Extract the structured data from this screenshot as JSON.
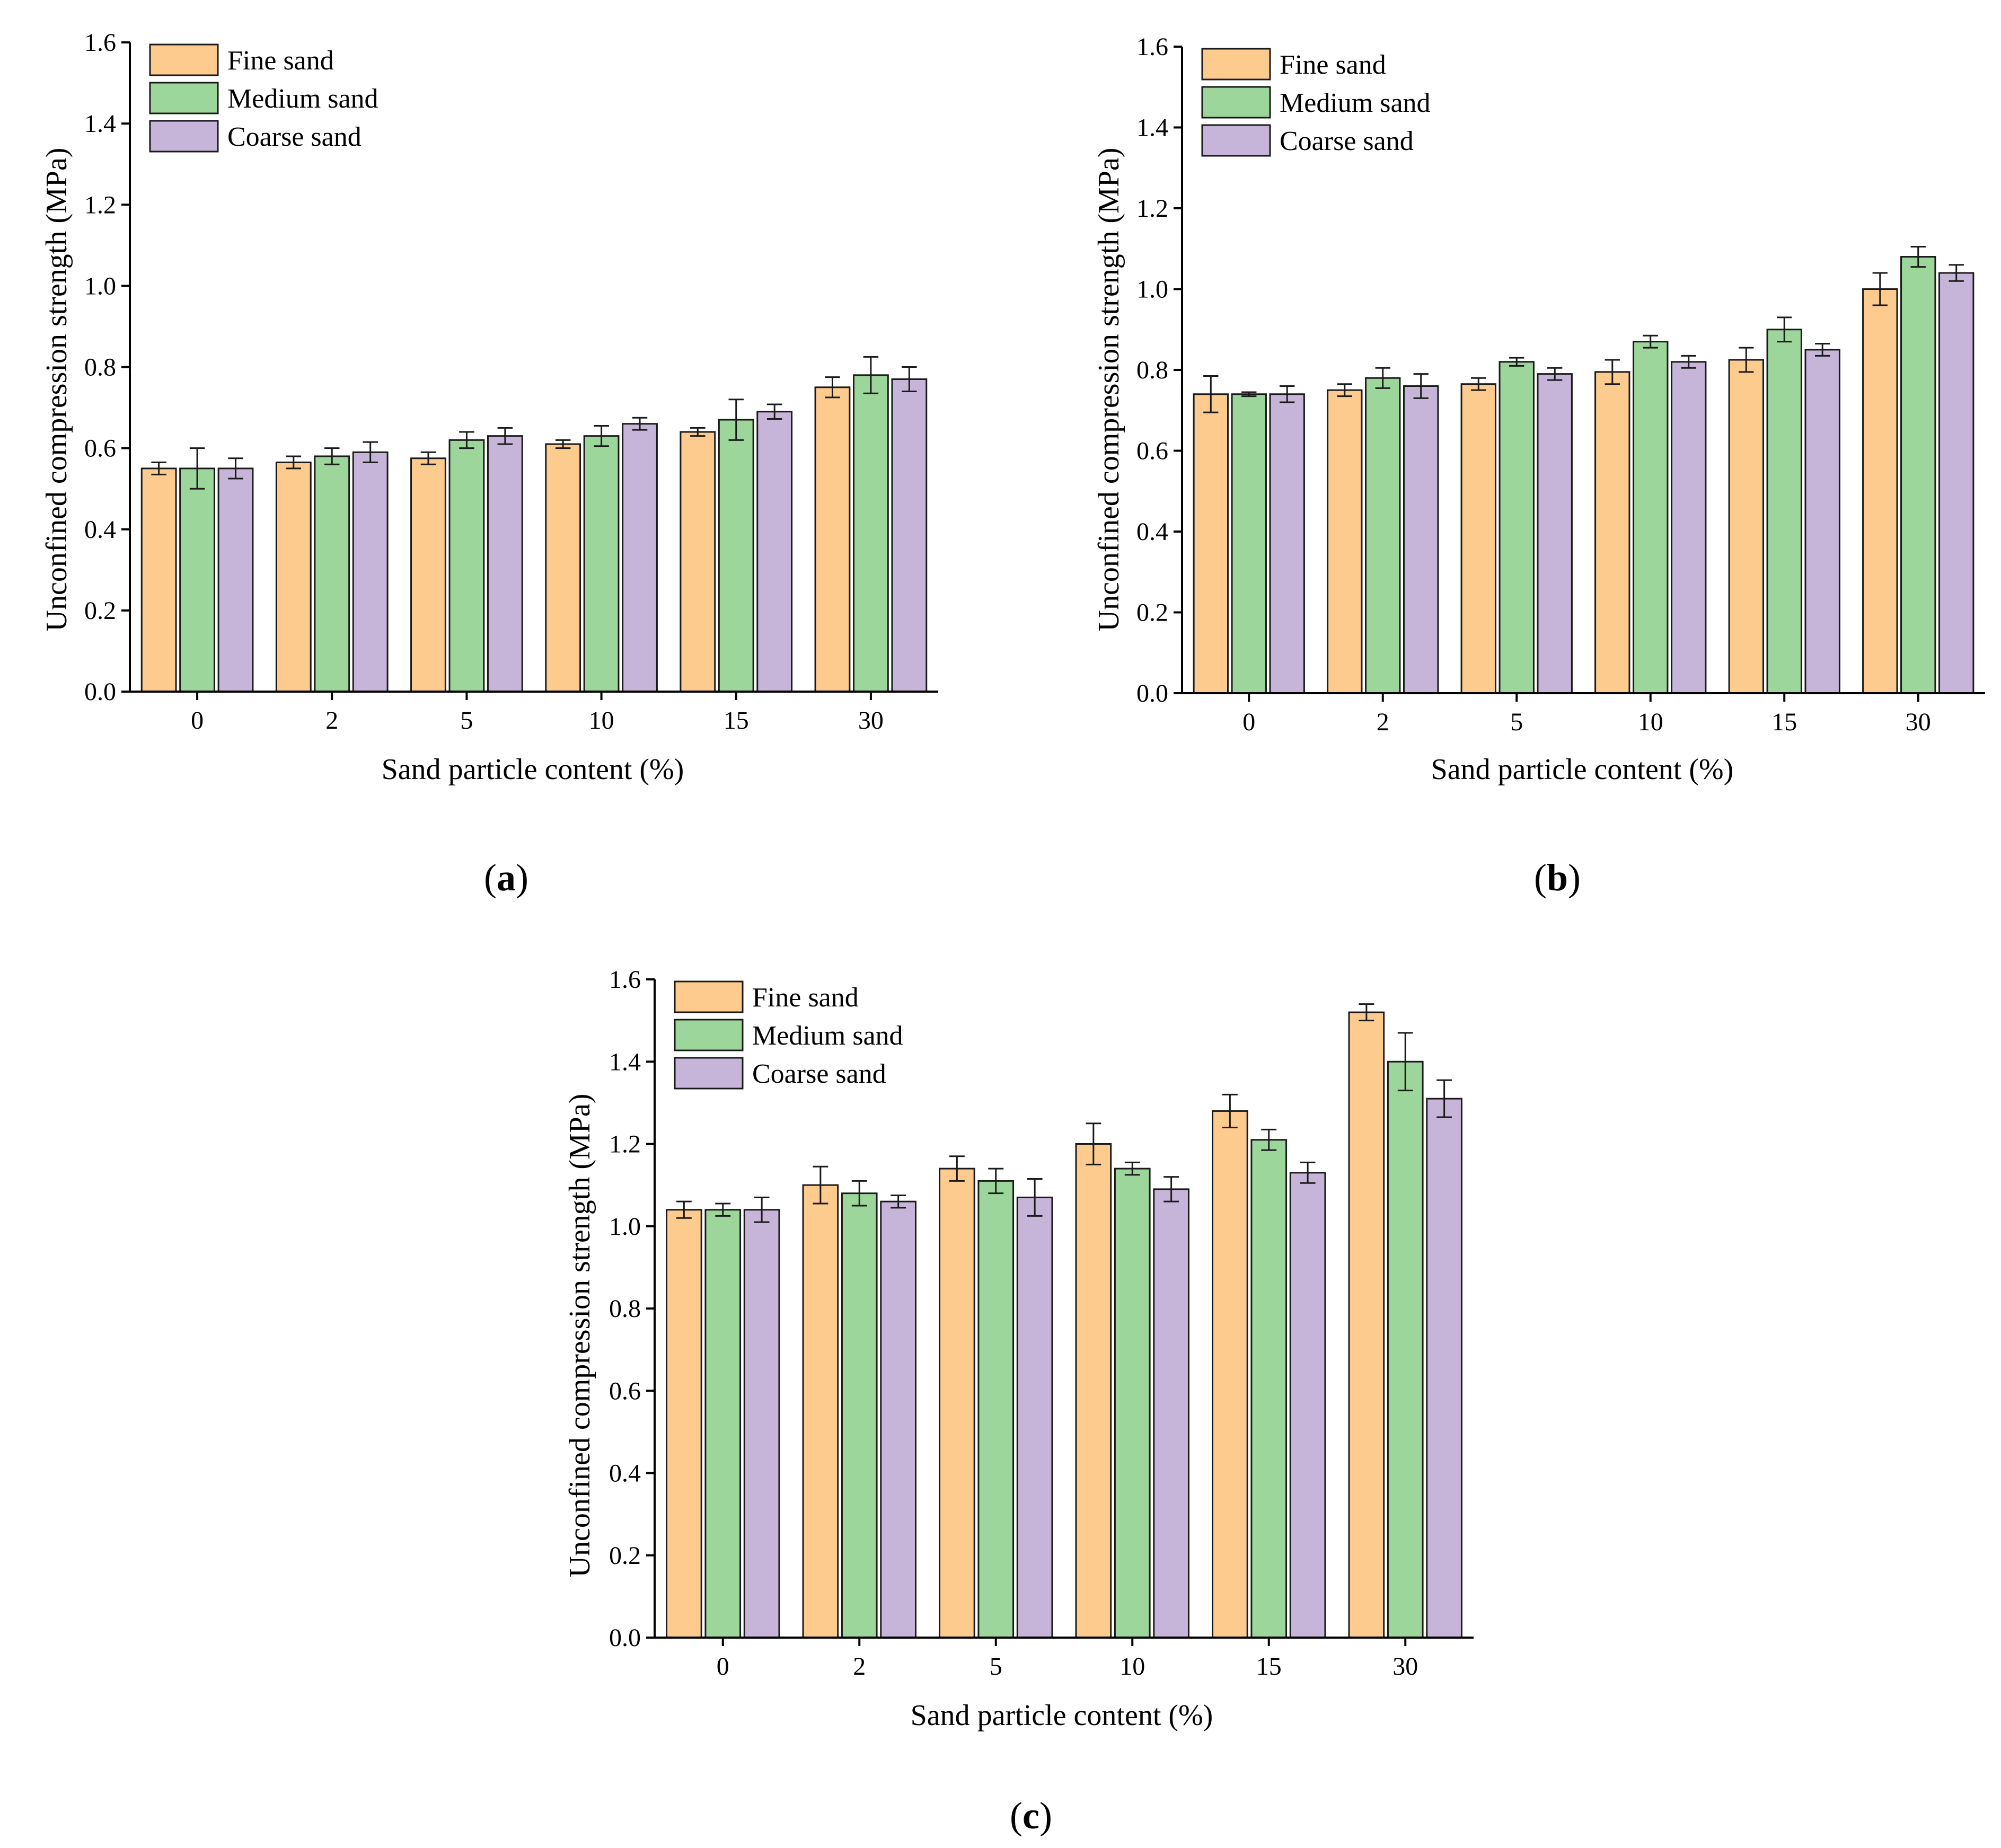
{
  "figure": {
    "colors": {
      "Fine sand": "#FDCB8E",
      "Medium sand": "#9DD69A",
      "Coarse sand": "#C7B5D9",
      "bar_stroke": "#1a1a1a",
      "axis": "#000000"
    }
  },
  "chart_data": [
    {
      "id": "a",
      "type": "bar",
      "panel_label": {
        "open": "(",
        "letter": "a",
        "close": ")"
      },
      "categories": [
        "0",
        "2",
        "5",
        "10",
        "15",
        "30"
      ],
      "xlabel": "Sand particle content (%)",
      "ylabel": "Unconfined compression strength (MPa)",
      "ylim": [
        0,
        1.6
      ],
      "yticks": [
        "0.0",
        "0.2",
        "0.4",
        "0.6",
        "0.8",
        "1.0",
        "1.2",
        "1.4",
        "1.6"
      ],
      "legend_position": "top-left",
      "series": [
        {
          "name": "Fine sand",
          "values": [
            0.55,
            0.565,
            0.575,
            0.61,
            0.64,
            0.75
          ],
          "errors": [
            0.015,
            0.015,
            0.015,
            0.01,
            0.01,
            0.025
          ]
        },
        {
          "name": "Medium sand",
          "values": [
            0.55,
            0.58,
            0.62,
            0.63,
            0.67,
            0.78
          ],
          "errors": [
            0.05,
            0.02,
            0.02,
            0.025,
            0.05,
            0.045
          ]
        },
        {
          "name": "Coarse sand",
          "values": [
            0.55,
            0.59,
            0.63,
            0.66,
            0.69,
            0.77
          ],
          "errors": [
            0.025,
            0.025,
            0.02,
            0.015,
            0.018,
            0.03
          ]
        }
      ]
    },
    {
      "id": "b",
      "type": "bar",
      "panel_label": {
        "open": "(",
        "letter": "b",
        "close": ")"
      },
      "categories": [
        "0",
        "2",
        "5",
        "10",
        "15",
        "30"
      ],
      "xlabel": "Sand particle content (%)",
      "ylabel": "Unconfined compression strength (MPa)",
      "ylim": [
        0,
        1.6
      ],
      "yticks": [
        "0.0",
        "0.2",
        "0.4",
        "0.6",
        "0.8",
        "1.0",
        "1.2",
        "1.4",
        "1.6"
      ],
      "legend_position": "top-left",
      "series": [
        {
          "name": "Fine sand",
          "values": [
            0.74,
            0.75,
            0.765,
            0.795,
            0.825,
            1.0
          ],
          "errors": [
            0.045,
            0.015,
            0.015,
            0.03,
            0.03,
            0.04
          ]
        },
        {
          "name": "Medium sand",
          "values": [
            0.74,
            0.78,
            0.82,
            0.87,
            0.9,
            1.08
          ],
          "errors": [
            0.005,
            0.025,
            0.01,
            0.015,
            0.03,
            0.025
          ]
        },
        {
          "name": "Coarse sand",
          "values": [
            0.74,
            0.76,
            0.79,
            0.82,
            0.85,
            1.04
          ],
          "errors": [
            0.02,
            0.03,
            0.015,
            0.015,
            0.015,
            0.02
          ]
        }
      ]
    },
    {
      "id": "c",
      "type": "bar",
      "panel_label": {
        "open": "(",
        "letter": "c",
        "close": ")"
      },
      "categories": [
        "0",
        "2",
        "5",
        "10",
        "15",
        "30"
      ],
      "xlabel": "Sand particle content (%)",
      "ylabel": "Unconfined compression strength (MPa)",
      "ylim": [
        0,
        1.6
      ],
      "yticks": [
        "0.0",
        "0.2",
        "0.4",
        "0.6",
        "0.8",
        "1.0",
        "1.2",
        "1.4",
        "1.6"
      ],
      "legend_position": "top-left",
      "series": [
        {
          "name": "Fine sand",
          "values": [
            1.04,
            1.1,
            1.14,
            1.2,
            1.28,
            1.52
          ],
          "errors": [
            0.02,
            0.045,
            0.03,
            0.05,
            0.04,
            0.02
          ]
        },
        {
          "name": "Medium sand",
          "values": [
            1.04,
            1.08,
            1.11,
            1.14,
            1.21,
            1.4
          ],
          "errors": [
            0.015,
            0.03,
            0.03,
            0.015,
            0.025,
            0.07
          ]
        },
        {
          "name": "Coarse sand",
          "values": [
            1.04,
            1.06,
            1.07,
            1.09,
            1.13,
            1.31
          ],
          "errors": [
            0.03,
            0.015,
            0.045,
            0.03,
            0.025,
            0.045
          ]
        }
      ]
    }
  ]
}
